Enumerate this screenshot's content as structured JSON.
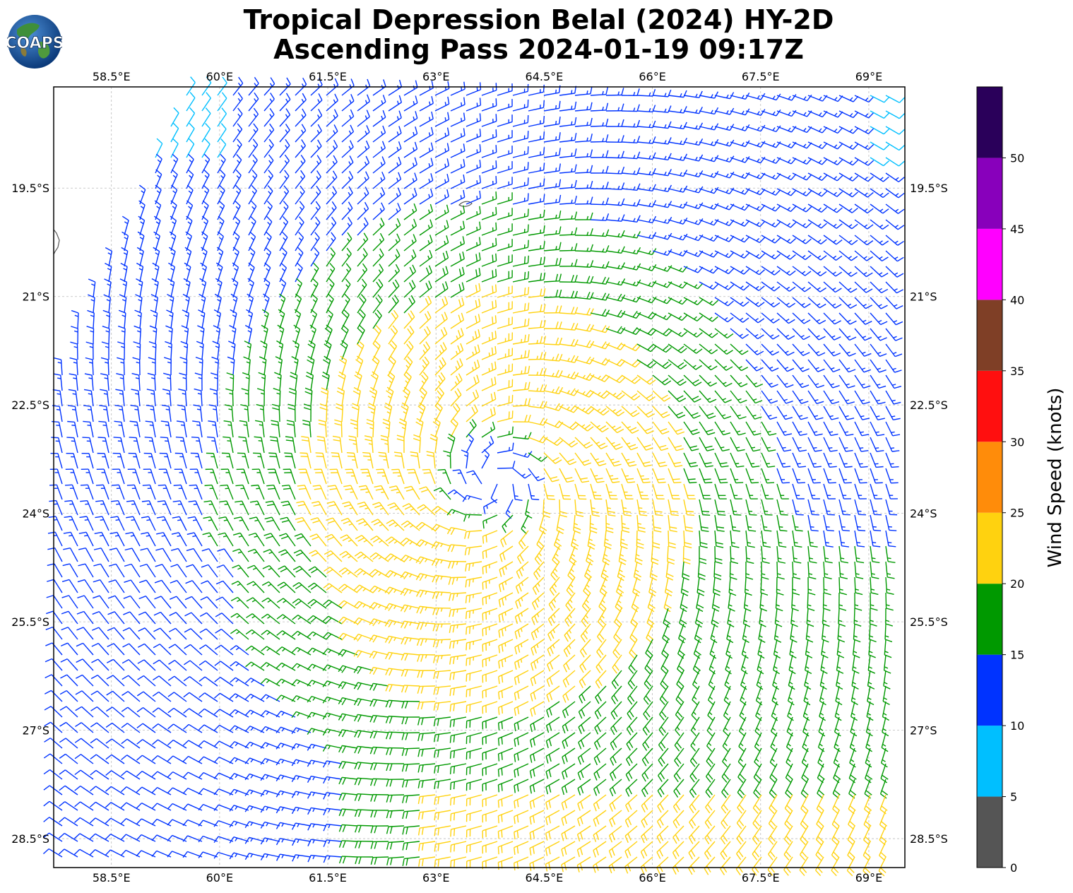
{
  "title": {
    "line1": "Tropical Depression Belal (2024) HY-2D",
    "line2": "Ascending Pass 2024-01-19 09:17Z"
  },
  "logo": {
    "text": "COAPS",
    "icon": "globe-logo"
  },
  "map": {
    "lon_ticks": [
      "58.5°E",
      "60°E",
      "61.5°E",
      "63°E",
      "64.5°E",
      "66°E",
      "67.5°E",
      "69°E"
    ],
    "lat_ticks": [
      "19.5°S",
      "21°S",
      "22.5°S",
      "24°S",
      "25.5°S",
      "27°S",
      "28.5°S"
    ],
    "lon_range": [
      57.7,
      69.5
    ],
    "lat_range": [
      18.1,
      28.9
    ],
    "grid": true,
    "grid_color": "#bbbbbb",
    "land_color": "#555555",
    "storm_center": {
      "lon": 63.8,
      "lat": 23.55
    }
  },
  "colorbar": {
    "label": "Wind Speed (knots)",
    "ticks": [
      "0",
      "5",
      "10",
      "15",
      "20",
      "25",
      "30",
      "35",
      "40",
      "45",
      "50"
    ],
    "bins": [
      {
        "min": 0,
        "max": 5,
        "color": "#555555"
      },
      {
        "min": 5,
        "max": 10,
        "color": "#00bfff"
      },
      {
        "min": 10,
        "max": 15,
        "color": "#0033ff"
      },
      {
        "min": 15,
        "max": 20,
        "color": "#009900"
      },
      {
        "min": 20,
        "max": 25,
        "color": "#ffd20f"
      },
      {
        "min": 25,
        "max": 30,
        "color": "#ff8c0a"
      },
      {
        "min": 30,
        "max": 35,
        "color": "#ff0f0f"
      },
      {
        "min": 35,
        "max": 40,
        "color": "#7f3f26"
      },
      {
        "min": 40,
        "max": 45,
        "color": "#ff00ff"
      },
      {
        "min": 45,
        "max": 50,
        "color": "#8800bb"
      },
      {
        "min": 50,
        "max": 55,
        "color": "#2a005a"
      }
    ]
  }
}
